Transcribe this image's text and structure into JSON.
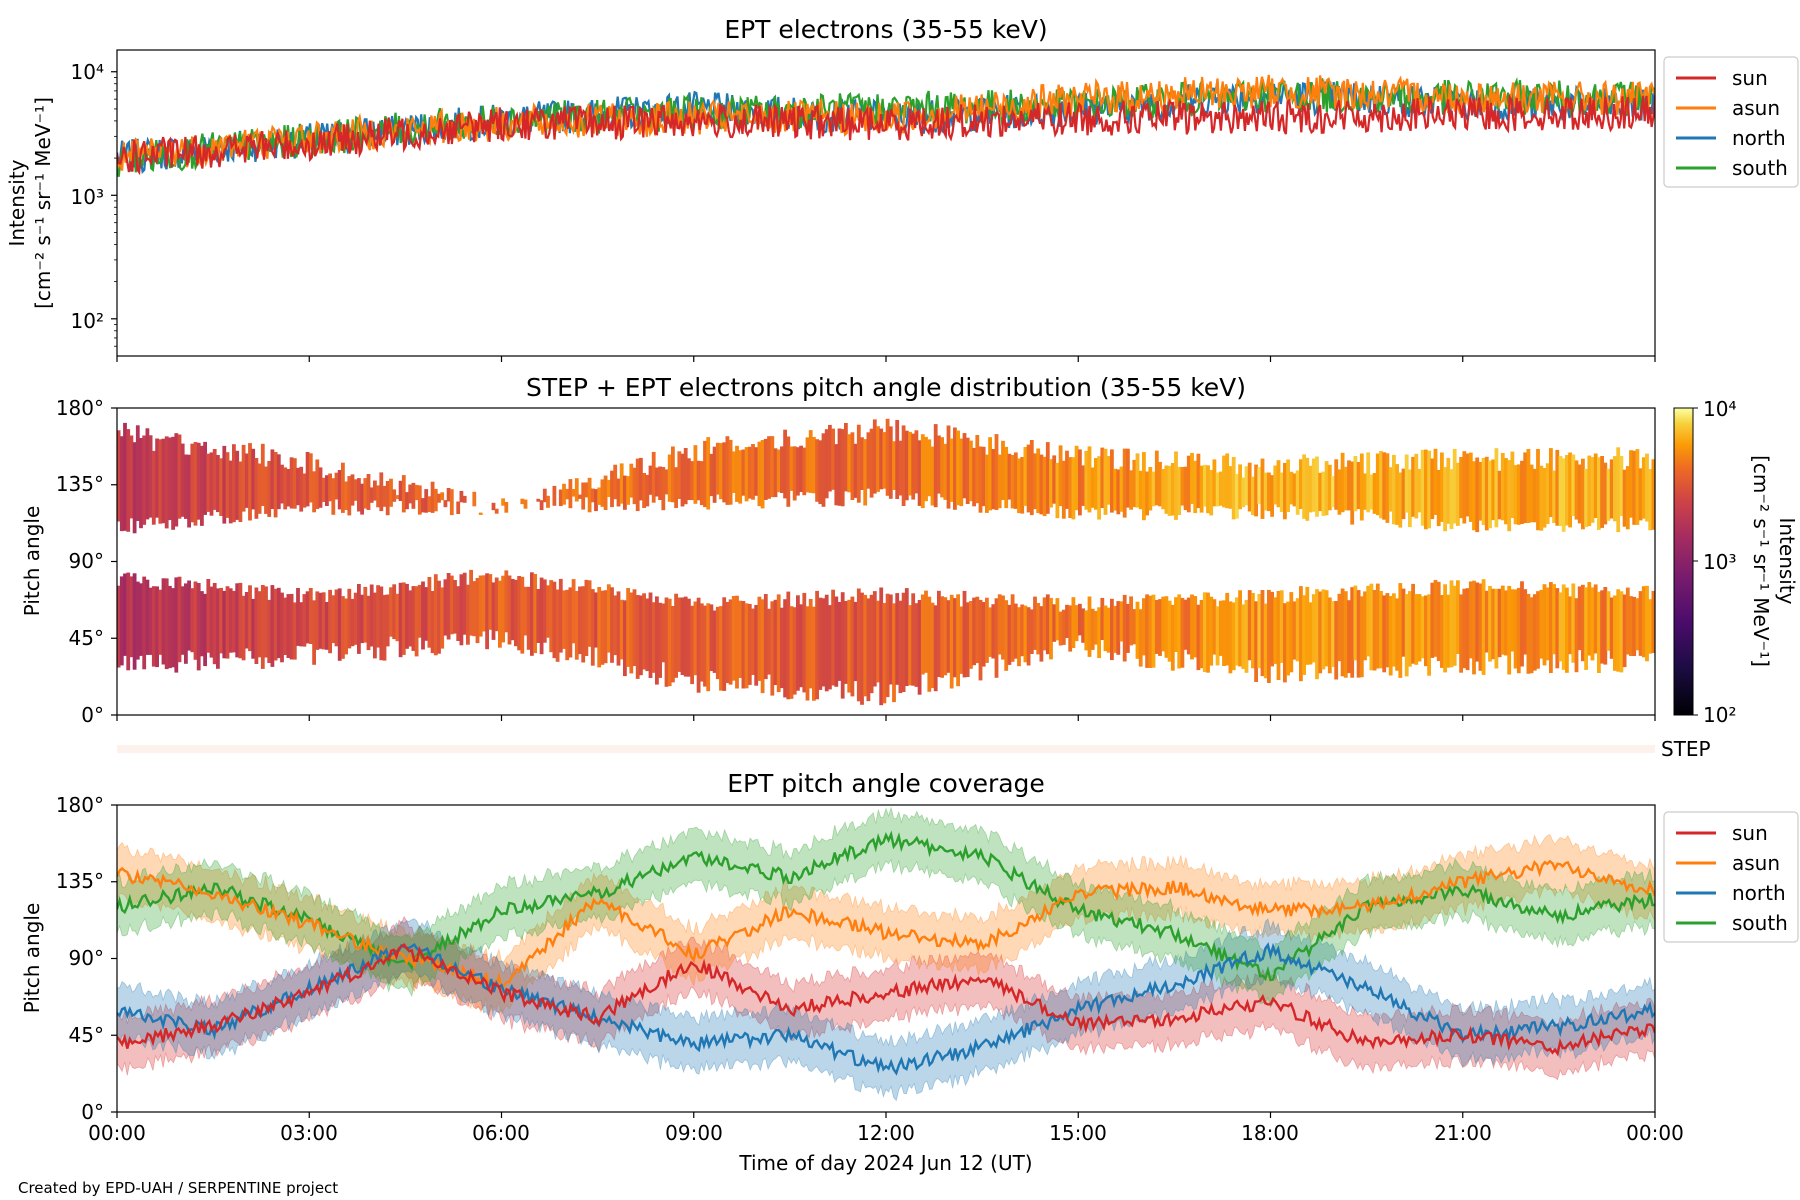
{
  "footer": {
    "credit": "Created by EPD-UAH / SERPENTINE project"
  },
  "colors": {
    "sun": "#d62728",
    "asun": "#ff7f0e",
    "north": "#1f77b4",
    "south": "#2ca02c"
  },
  "chart_data": [
    {
      "type": "line",
      "title": "EPT electrons (35-55 keV)",
      "ylabel_line1": "Intensity",
      "ylabel_line2": "[cm⁻² s⁻¹ sr⁻¹ MeV⁻¹]",
      "yscale": "log",
      "ylim": [
        50,
        15000
      ],
      "yticks": [
        "10²",
        "10³",
        "10⁴"
      ],
      "xlim_hours": [
        0,
        24
      ],
      "legend_position": "outside-right-top",
      "series": [
        {
          "name": "sun",
          "color": "#d62728",
          "hours": [
            0,
            3,
            6,
            9,
            12,
            15,
            18,
            21,
            24
          ],
          "values": [
            2000,
            2600,
            3800,
            4000,
            3800,
            4200,
            4300,
            4500,
            4700
          ]
        },
        {
          "name": "asun",
          "color": "#ff7f0e",
          "hours": [
            0,
            3,
            6,
            9,
            12,
            15,
            18,
            21,
            24
          ],
          "values": [
            2000,
            2900,
            3800,
            4200,
            4200,
            6000,
            7000,
            6200,
            6000
          ]
        },
        {
          "name": "north",
          "color": "#1f77b4",
          "hours": [
            0,
            3,
            6,
            9,
            12,
            15,
            18,
            21,
            24
          ],
          "values": [
            2000,
            2800,
            4000,
            5000,
            4200,
            5000,
            6500,
            5500,
            5300
          ]
        },
        {
          "name": "south",
          "color": "#2ca02c",
          "hours": [
            0,
            3,
            6,
            9,
            12,
            15,
            18,
            21,
            24
          ],
          "values": [
            1900,
            2800,
            4100,
            4600,
            5000,
            5400,
            6500,
            6200,
            6200
          ]
        }
      ]
    },
    {
      "type": "heatmap",
      "title": "STEP + EPT electrons pitch angle distribution (35-55 keV)",
      "ylabel": "Pitch angle",
      "ylim": [
        0,
        180
      ],
      "yticks": [
        "0°",
        "45°",
        "90°",
        "135°",
        "180°"
      ],
      "xlim_hours": [
        0,
        24
      ],
      "colorbar_label_line1": "Intensity",
      "colorbar_label_line2": "[cm⁻² s⁻¹ sr⁻¹ MeV⁻¹]",
      "colorbar_range": [
        100,
        10000
      ],
      "colorbar_ticks": [
        "10²",
        "10³",
        "10⁴"
      ],
      "colormap": "inferno",
      "step_strip_label": "STEP",
      "bands_hours": [
        0,
        3,
        6,
        9,
        12,
        15,
        18,
        21,
        24
      ],
      "upper_band_lo": [
        110,
        122,
        122,
        125,
        128,
        118,
        120,
        112,
        112
      ],
      "upper_band_hi": [
        165,
        148,
        120,
        155,
        168,
        152,
        145,
        150,
        150
      ],
      "lower_band_lo": [
        30,
        35,
        45,
        20,
        12,
        40,
        25,
        30,
        32
      ],
      "lower_band_hi": [
        80,
        70,
        82,
        65,
        70,
        65,
        70,
        75,
        72
      ],
      "band_intensity": [
        2000,
        3000,
        4000,
        4000,
        3800,
        5000,
        6500,
        6000,
        6000
      ]
    },
    {
      "type": "line",
      "title": "EPT pitch angle coverage",
      "ylabel": "Pitch angle",
      "xlabel": "Time of day 2024 Jun 12 (UT)",
      "ylim": [
        0,
        180
      ],
      "yticks": [
        "0°",
        "45°",
        "90°",
        "135°",
        "180°"
      ],
      "xlim_hours": [
        0,
        24
      ],
      "xticks": [
        "00:00",
        "03:00",
        "06:00",
        "09:00",
        "12:00",
        "15:00",
        "18:00",
        "21:00",
        "00:00"
      ],
      "legend_position": "outside-right-top",
      "band_halfwidth_deg": 15,
      "series": [
        {
          "name": "sun",
          "color": "#d62728",
          "hours": [
            0,
            1.5,
            3,
            4.5,
            6,
            7.5,
            9,
            10.5,
            12,
            13.5,
            15,
            16.5,
            18,
            19.5,
            21,
            22.5,
            24
          ],
          "values": [
            40,
            50,
            70,
            95,
            70,
            55,
            88,
            60,
            70,
            78,
            52,
            55,
            65,
            40,
            45,
            38,
            50
          ]
        },
        {
          "name": "asun",
          "color": "#ff7f0e",
          "hours": [
            0,
            1.5,
            3,
            4.5,
            6,
            7.5,
            9,
            10.5,
            12,
            13.5,
            15,
            16.5,
            18,
            19.5,
            21,
            22.5,
            24
          ],
          "values": [
            140,
            128,
            110,
            90,
            75,
            125,
            92,
            118,
            105,
            98,
            128,
            132,
            118,
            120,
            135,
            145,
            130
          ]
        },
        {
          "name": "north",
          "color": "#1f77b4",
          "hours": [
            0,
            1.5,
            3,
            4.5,
            6,
            7.5,
            9,
            10.5,
            12,
            13.5,
            15,
            16.5,
            18,
            19.5,
            21,
            22.5,
            24
          ],
          "values": [
            60,
            48,
            72,
            98,
            72,
            55,
            40,
            45,
            25,
            38,
            60,
            75,
            95,
            72,
            45,
            50,
            60
          ]
        },
        {
          "name": "south",
          "color": "#2ca02c",
          "hours": [
            0,
            1.5,
            3,
            4.5,
            6,
            7.5,
            9,
            10.5,
            12,
            13.5,
            15,
            16.5,
            18,
            19.5,
            21,
            22.5,
            24
          ],
          "values": [
            120,
            132,
            112,
            86,
            118,
            128,
            150,
            138,
            160,
            150,
            118,
            105,
            80,
            120,
            130,
            115,
            125
          ]
        }
      ]
    }
  ]
}
